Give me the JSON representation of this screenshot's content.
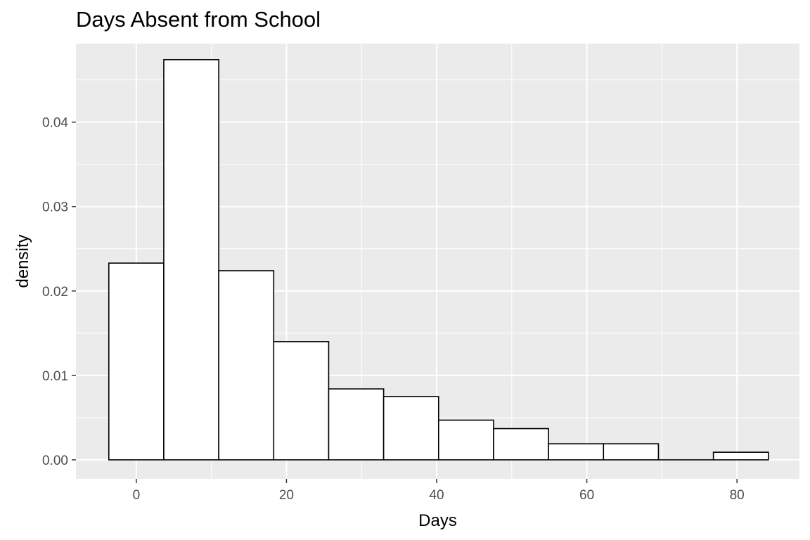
{
  "chart_data": {
    "type": "bar",
    "title": "Days Absent from School",
    "xlabel": "Days",
    "ylabel": "density",
    "xlim": [
      -8.04,
      88.32
    ],
    "ylim": [
      -0.00225,
      0.0493
    ],
    "x_ticks": [
      0,
      20,
      40,
      60,
      80
    ],
    "x_tick_labels": [
      "0",
      "20",
      "40",
      "60",
      "80"
    ],
    "y_ticks": [
      0,
      0.01,
      0.02,
      0.03,
      0.04
    ],
    "y_tick_labels": [
      "0.00",
      "0.01",
      "0.02",
      "0.03",
      "0.04"
    ],
    "bins": [
      {
        "x0": -3.66,
        "x1": 3.66,
        "value": 0.0233
      },
      {
        "x0": 3.66,
        "x1": 10.98,
        "value": 0.0474
      },
      {
        "x0": 10.98,
        "x1": 18.3,
        "value": 0.0224
      },
      {
        "x0": 18.3,
        "x1": 25.62,
        "value": 0.014
      },
      {
        "x0": 25.62,
        "x1": 32.94,
        "value": 0.0084
      },
      {
        "x0": 32.94,
        "x1": 40.26,
        "value": 0.0075
      },
      {
        "x0": 40.26,
        "x1": 47.58,
        "value": 0.0047
      },
      {
        "x0": 47.58,
        "x1": 54.9,
        "value": 0.0037
      },
      {
        "x0": 54.9,
        "x1": 62.22,
        "value": 0.0019
      },
      {
        "x0": 62.22,
        "x1": 69.54,
        "value": 0.0019
      },
      {
        "x0": 69.54,
        "x1": 76.86,
        "value": 0.0
      },
      {
        "x0": 76.86,
        "x1": 84.18,
        "value": 0.0009
      }
    ],
    "grid": true,
    "panel_background": "#ebebeb",
    "grid_color": "#ffffff",
    "bar_fill": "#ffffff",
    "bar_outline": "#000000"
  }
}
